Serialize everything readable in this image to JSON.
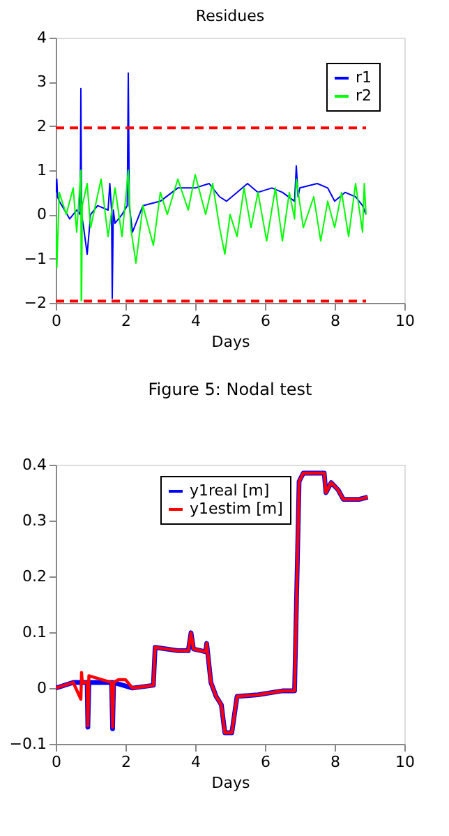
{
  "chart_data": [
    {
      "type": "line",
      "title": "Residues",
      "xlabel": "Days",
      "xlim": [
        0,
        10
      ],
      "xticks": [
        0,
        2,
        4,
        6,
        8,
        10
      ],
      "ylim": [
        -2,
        4
      ],
      "yticks": [
        -2,
        -1,
        0,
        1,
        2,
        3,
        4
      ],
      "legend": "top right",
      "grid": false,
      "annotations": [
        "Figure 5: Nodal test"
      ],
      "ref_lines": [
        {
          "axis": "y",
          "value": 1.96,
          "color": "#ff0000",
          "line_style": "dashed"
        },
        {
          "axis": "y",
          "value": -1.96,
          "color": "#ff0000",
          "line_style": "dashed"
        }
      ],
      "series": [
        {
          "name": "r1",
          "color": "#0000ff",
          "x": [
            0,
            0.03,
            0.05,
            0.1,
            0.4,
            0.6,
            0.7,
            0.72,
            0.74,
            0.8,
            0.9,
            1.0,
            1.2,
            1.5,
            1.55,
            1.6,
            1.62,
            1.65,
            1.7,
            1.9,
            2.05,
            2.08,
            2.11,
            2.2,
            2.5,
            3.0,
            3.5,
            4.0,
            4.4,
            4.7,
            4.9,
            5.2,
            5.5,
            5.8,
            6.2,
            6.5,
            6.85,
            6.9,
            6.95,
            7.0,
            7.5,
            7.8,
            8.0,
            8.3,
            8.6,
            8.8,
            8.9
          ],
          "values": [
            0.5,
            0.8,
            0.4,
            0.3,
            -0.1,
            0.1,
            0,
            2.85,
            0,
            -0.3,
            -0.9,
            0,
            0.2,
            0.1,
            0.7,
            0.1,
            -1.9,
            0.1,
            -0.2,
            0,
            0.2,
            3.2,
            0.2,
            -0.4,
            0.2,
            0.3,
            0.6,
            0.6,
            0.7,
            0.4,
            0.3,
            0.5,
            0.7,
            0.5,
            0.6,
            0.5,
            0.3,
            1.1,
            0.4,
            0.6,
            0.7,
            0.6,
            0.3,
            0.5,
            0.4,
            0.2,
            0
          ]
        },
        {
          "name": "r2",
          "color": "#00ff00",
          "x": [
            0,
            0.03,
            0.1,
            0.3,
            0.5,
            0.6,
            0.72,
            0.73,
            0.74,
            0.76,
            0.9,
            1.0,
            1.3,
            1.5,
            1.7,
            1.9,
            2.08,
            2.15,
            2.3,
            2.5,
            2.8,
            3.0,
            3.2,
            3.5,
            3.8,
            4.0,
            4.3,
            4.5,
            4.7,
            4.85,
            5.0,
            5.2,
            5.4,
            5.6,
            5.8,
            6.05,
            6.3,
            6.5,
            6.7,
            6.85,
            6.9,
            7.1,
            7.4,
            7.6,
            7.8,
            8.0,
            8.2,
            8.4,
            8.6,
            8.8,
            8.85,
            8.9
          ],
          "values": [
            0,
            -1.2,
            0.5,
            0,
            0.6,
            -0.4,
            1.0,
            -1.95,
            -1.95,
            0.2,
            0.7,
            -0.3,
            0.8,
            -0.5,
            0.6,
            -0.5,
            1.0,
            -0.3,
            -1.1,
            0.2,
            -0.7,
            0.5,
            0,
            0.8,
            0.1,
            0.9,
            0,
            0.7,
            -0.3,
            -0.9,
            0,
            -0.5,
            0.6,
            -0.3,
            0.5,
            -0.6,
            0.6,
            -0.6,
            0.5,
            -0.1,
            0.8,
            -0.3,
            0.4,
            -0.6,
            0.3,
            -0.3,
            0.5,
            -0.5,
            0.7,
            -0.4,
            0.7,
            0
          ]
        }
      ]
    },
    {
      "type": "line",
      "xlabel": "Days",
      "xlim": [
        0,
        10
      ],
      "xticks": [
        0,
        2,
        4,
        6,
        8,
        10
      ],
      "ylim": [
        -0.1,
        0.4
      ],
      "yticks": [
        -0.1,
        0,
        0.1,
        0.2,
        0.3,
        0.4
      ],
      "legend": "top",
      "grid": false,
      "series": [
        {
          "name": "y1real [m]",
          "color": "#0000ff",
          "x": [
            0,
            0.5,
            0.9,
            0.92,
            0.95,
            1.6,
            1.63,
            1.66,
            2.2,
            2.8,
            2.85,
            3.5,
            3.8,
            3.88,
            3.95,
            4.3,
            4.33,
            4.45,
            4.6,
            4.75,
            4.85,
            5.05,
            5.2,
            5.8,
            6.5,
            6.85,
            6.98,
            7.1,
            7.7,
            7.75,
            7.9,
            8.1,
            8.25,
            8.7,
            8.95
          ],
          "values": [
            0,
            0.01,
            0.01,
            -0.07,
            0.01,
            0.01,
            -0.073,
            0.01,
            0,
            0.005,
            0.073,
            0.067,
            0.067,
            0.099,
            0.07,
            0.065,
            0.08,
            0.01,
            -0.015,
            -0.03,
            -0.08,
            -0.08,
            -0.015,
            -0.012,
            -0.005,
            -0.005,
            0.37,
            0.385,
            0.385,
            0.35,
            0.368,
            0.355,
            0.338,
            0.338,
            0.342
          ]
        },
        {
          "name": "y1estim [m]",
          "color": "#ff0000",
          "x": [
            0,
            0.5,
            0.72,
            0.74,
            0.76,
            0.9,
            0.92,
            0.95,
            1.6,
            1.63,
            1.66,
            1.8,
            2.0,
            2.2,
            2.8,
            2.85,
            3.5,
            3.8,
            3.88,
            3.95,
            4.3,
            4.33,
            4.45,
            4.6,
            4.75,
            4.85,
            5.05,
            5.2,
            5.8,
            6.5,
            6.85,
            6.98,
            7.1,
            7.7,
            7.75,
            7.9,
            8.1,
            8.25,
            8.7,
            8.95
          ],
          "values": [
            0,
            0.01,
            -0.02,
            0.028,
            0.01,
            0.01,
            -0.068,
            0.022,
            0.01,
            -0.07,
            0.01,
            0.015,
            0.015,
            0,
            0.005,
            0.073,
            0.067,
            0.067,
            0.099,
            0.07,
            0.065,
            0.08,
            0.01,
            -0.015,
            -0.03,
            -0.08,
            -0.08,
            -0.015,
            -0.012,
            -0.005,
            -0.005,
            0.37,
            0.385,
            0.385,
            0.35,
            0.368,
            0.355,
            0.338,
            0.338,
            0.342
          ]
        }
      ]
    }
  ]
}
